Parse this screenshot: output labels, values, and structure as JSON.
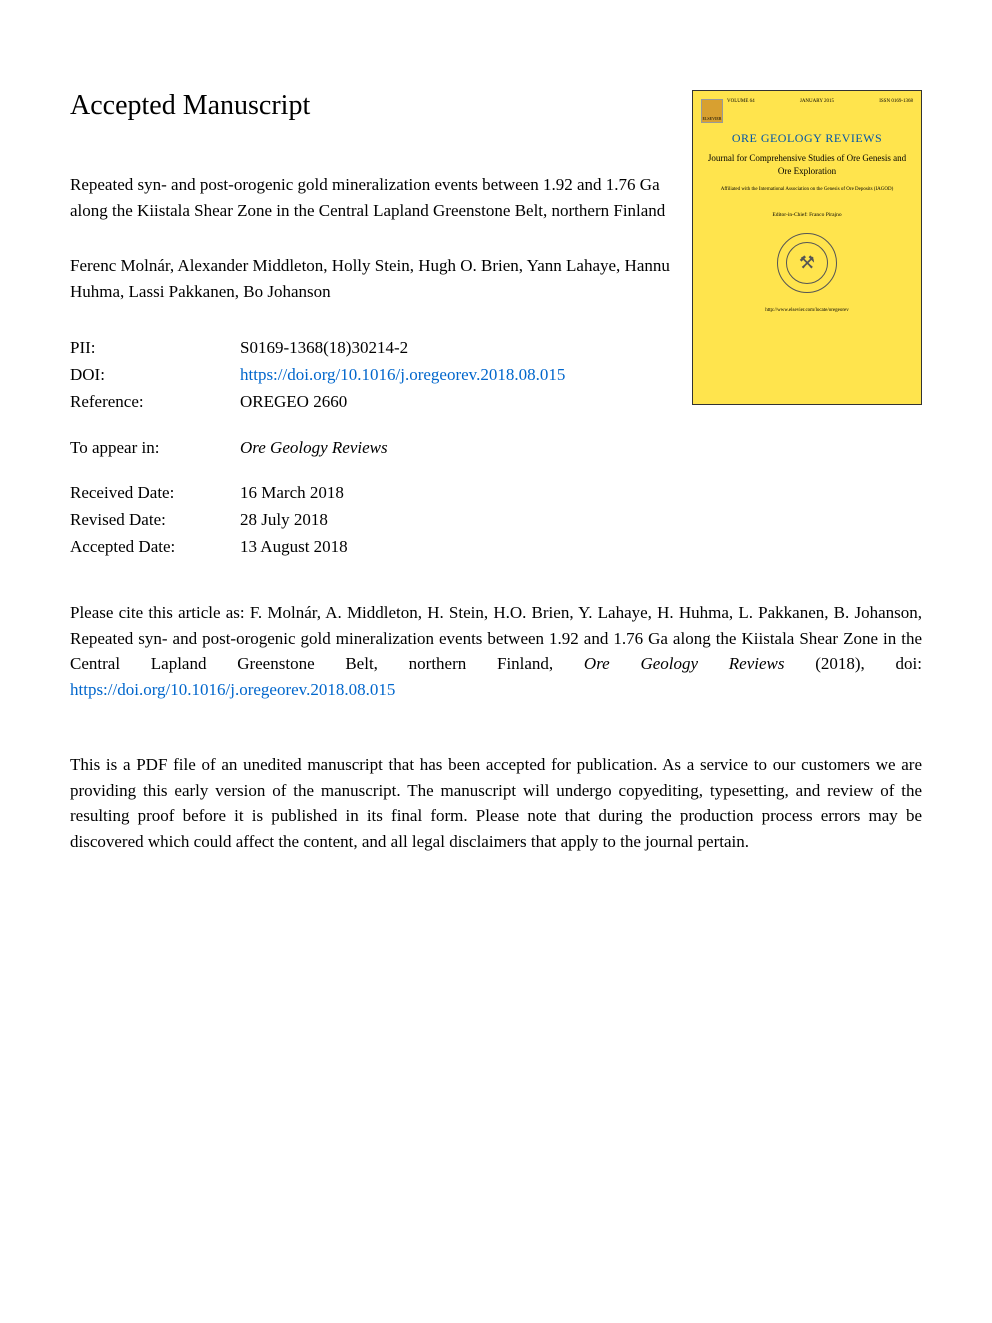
{
  "heading": "Accepted Manuscript",
  "title": "Repeated syn- and post-orogenic gold mineralization events between 1.92 and 1.76 Ga along the Kiistala Shear Zone in the Central Lapland Greenstone Belt, northern Finland",
  "authors": "Ferenc Molnár, Alexander Middleton, Holly Stein, Hugh O. Brien, Yann Lahaye, Hannu Huhma, Lassi Pakkanen, Bo Johanson",
  "meta": {
    "pii_label": "PII:",
    "pii_value": "S0169-1368(18)30214-2",
    "doi_label": "DOI:",
    "doi_value": "https://doi.org/10.1016/j.oregeorev.2018.08.015",
    "ref_label": "Reference:",
    "ref_value": "OREGEO 2660",
    "appear_label": "To appear in:",
    "appear_value": "Ore Geology Reviews",
    "received_label": "Received Date:",
    "received_value": "16 March 2018",
    "revised_label": "Revised Date:",
    "revised_value": "28 July 2018",
    "accepted_label": "Accepted Date:",
    "accepted_value": "13 August 2018"
  },
  "cover": {
    "background_color": "#ffe44d",
    "title_color": "#0055aa",
    "text_color": "#000000",
    "logo_text": "ELSEVIER",
    "header_left": "VOLUME 64",
    "header_center": "JANUARY 2015",
    "header_right": "ISSN 0169-1368",
    "title": "ORE GEOLOGY REVIEWS",
    "subtitle": "Journal for Comprehensive Studies of Ore Genesis and Ore Exploration",
    "affiliation": "Affiliated with the International Association on the Genesis of Ore Deposits (IAGOD)",
    "editors": "Editor-in-Chief: Franco Pirajno",
    "url": "http://www.elsevier.com/locate/oregeorev"
  },
  "citation": {
    "prefix": "Please cite this article as: F. Molnár, A. Middleton, H. Stein, H.O. Brien, Y. Lahaye, H. Huhma, L. Pakkanen, B. Johanson, Repeated syn- and post-orogenic gold mineralization events between 1.92 and 1.76 Ga along the Kiistala Shear Zone in the Central Lapland Greenstone Belt, northern Finland, ",
    "journal": "Ore Geology Reviews",
    "year": " (2018), doi: ",
    "doi_link": "https://doi.org/10.1016/j.oregeorev.2018.08.015"
  },
  "disclaimer": "This is a PDF file of an unedited manuscript that has been accepted for publication. As a service to our customers we are providing this early version of the manuscript. The manuscript will undergo copyediting, typesetting, and review of the resulting proof before it is published in its final form. Please note that during the production process errors may be discovered which could affect the content, and all legal disclaimers that apply to the journal pertain.",
  "colors": {
    "link": "#0066cc",
    "text": "#000000",
    "background": "#ffffff"
  }
}
